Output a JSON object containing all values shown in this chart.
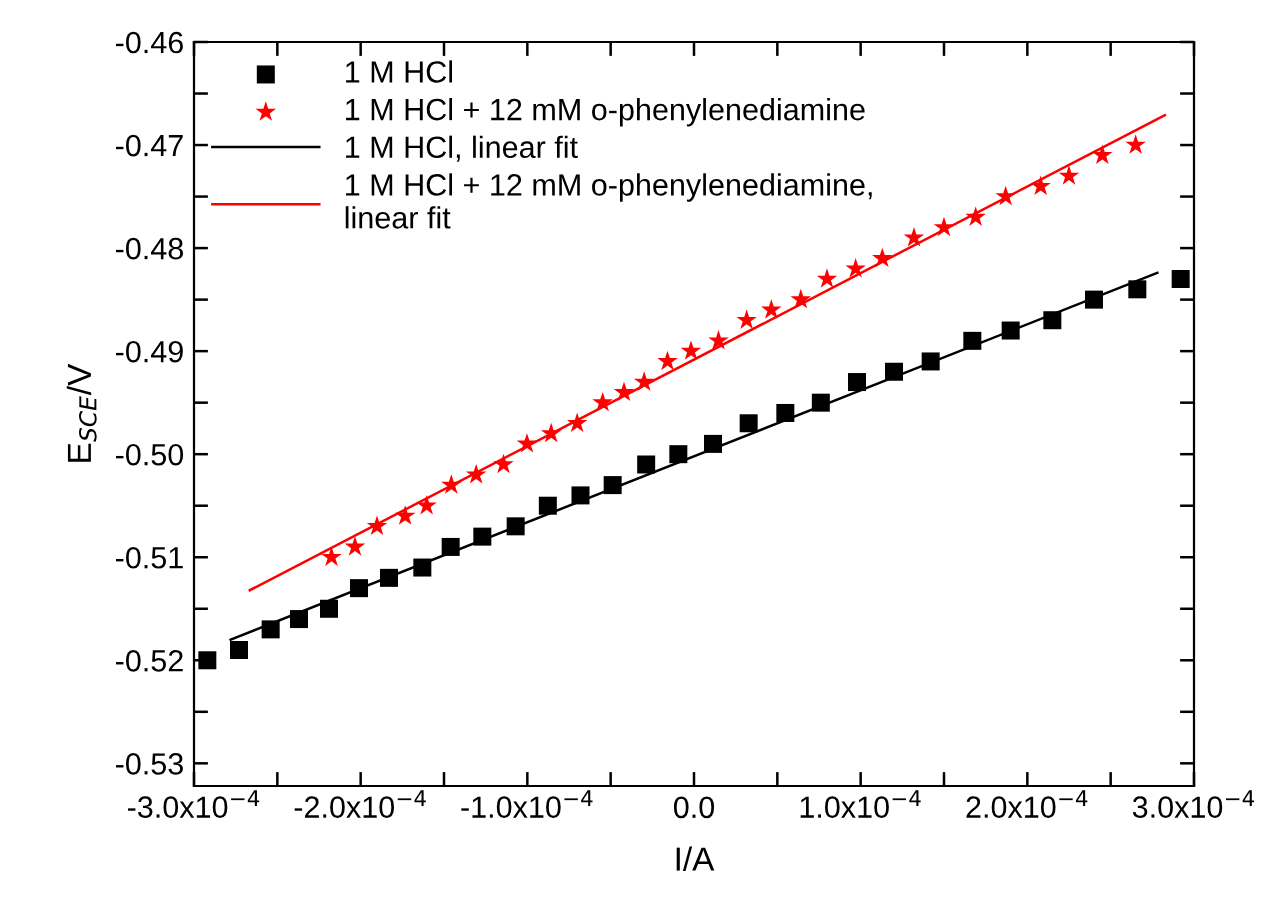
{
  "chart_data": {
    "type": "scatter",
    "xlabel": "I/A",
    "ylabel": "E$_{SCE}$/V",
    "xlim": [
      -0.0003,
      0.0003
    ],
    "ylim": [
      -0.5322,
      -0.46
    ],
    "xticks": [
      {
        "value": -0.0003,
        "label": "-3.0x10$^{−4}$"
      },
      {
        "value": -0.00025,
        "label": null
      },
      {
        "value": -0.0002,
        "label": "-2.0x10$^{−4}$"
      },
      {
        "value": -0.00015,
        "label": null
      },
      {
        "value": -0.0001,
        "label": "-1.0x10$^{−4}$"
      },
      {
        "value": -5e-05,
        "label": null
      },
      {
        "value": 0,
        "label": "0.0"
      },
      {
        "value": 5e-05,
        "label": null
      },
      {
        "value": 0.0001,
        "label": "1.0x10$^{−4}$"
      },
      {
        "value": 0.00015,
        "label": null
      },
      {
        "value": 0.0002,
        "label": "2.0x10$^{−4}$"
      },
      {
        "value": 0.00025,
        "label": null
      },
      {
        "value": 0.0003,
        "label": "3.0x10$^{−4}$"
      }
    ],
    "yticks": [
      -0.46,
      {
        "value": -0.465,
        "label": null
      },
      -0.47,
      {
        "value": -0.475,
        "label": null
      },
      -0.48,
      {
        "value": -0.485,
        "label": null
      },
      -0.49,
      {
        "value": -0.495,
        "label": null
      },
      {
        "value": -0.5,
        "label": "-0.50"
      },
      {
        "value": -0.505,
        "label": null
      },
      -0.51,
      {
        "value": -0.515,
        "label": null
      },
      -0.52,
      {
        "value": -0.525,
        "label": null
      },
      -0.53
    ],
    "grid": false,
    "legend": "top left",
    "series": [
      {
        "name": "1 M HCl",
        "marker": "square",
        "color": "#000000",
        "x": [
          -0.000292,
          -0.000273,
          -0.000254,
          -0.000237,
          -0.000219,
          -0.000201,
          -0.000183,
          -0.000163,
          -0.000146,
          -0.000127,
          -0.000107,
          -8.77e-05,
          -6.81e-05,
          -4.88e-05,
          -2.87e-05,
          -9.4e-06,
          1.14e-05,
          3.28e-05,
          5.48e-05,
          7.61e-05,
          9.78e-05,
          0.00012,
          0.000142,
          0.000167,
          0.00019,
          0.000215,
          0.00024,
          0.000266,
          0.000292
        ],
        "values": [
          -0.52,
          -0.519,
          -0.517,
          -0.516,
          -0.515,
          -0.513,
          -0.512,
          -0.511,
          -0.509,
          -0.508,
          -0.507,
          -0.505,
          -0.504,
          -0.503,
          -0.501,
          -0.5,
          -0.499,
          -0.497,
          -0.496,
          -0.495,
          -0.493,
          -0.492,
          -0.491,
          -0.489,
          -0.488,
          -0.487,
          -0.485,
          -0.484,
          -0.483
        ]
      },
      {
        "name": "1 M HCl + 12 mM o-phenylenediamine",
        "marker": "star",
        "color": "#ff0000",
        "x": [
          -0.0002175,
          -0.0002034,
          -0.0001902,
          -0.0001733,
          -0.0001604,
          -0.0001456,
          -0.0001307,
          -0.0001143,
          -0.0001002,
          -8.57e-05,
          -7.01e-05,
          -5.48e-05,
          -4.2e-05,
          -2.99e-05,
          -1.59e-05,
          -1.8e-06,
          1.47e-05,
          3.16e-05,
          4.64e-05,
          6.41e-05,
          7.98e-05,
          9.7e-05,
          0.000113,
          0.000132,
          0.00015,
          0.000169,
          0.000187,
          0.000208,
          0.000225,
          0.000245,
          0.000265
        ],
        "values": [
          -0.51,
          -0.509,
          -0.507,
          -0.506,
          -0.505,
          -0.503,
          -0.502,
          -0.501,
          -0.499,
          -0.498,
          -0.497,
          -0.495,
          -0.494,
          -0.493,
          -0.491,
          -0.49,
          -0.489,
          -0.487,
          -0.486,
          -0.485,
          -0.483,
          -0.482,
          -0.481,
          -0.479,
          -0.478,
          -0.477,
          -0.475,
          -0.474,
          -0.473,
          -0.471,
          -0.47
        ]
      },
      {
        "name": "1 M HCl, linear fit",
        "type": "line",
        "marker": "none",
        "line_style": "solid",
        "color": "#000000",
        "x": [
          -0.000278,
          0.000278
        ],
        "values": [
          -0.518,
          -0.4824
        ]
      },
      {
        "name": "1 M HCl + 12 mM o-phenylenediamine,\nlinear fit",
        "type": "line",
        "marker": "none",
        "line_style": "solid",
        "color": "#ff0000",
        "x": [
          -0.0002665,
          0.0002825
        ],
        "values": [
          -0.5132,
          -0.4671
        ]
      }
    ]
  }
}
